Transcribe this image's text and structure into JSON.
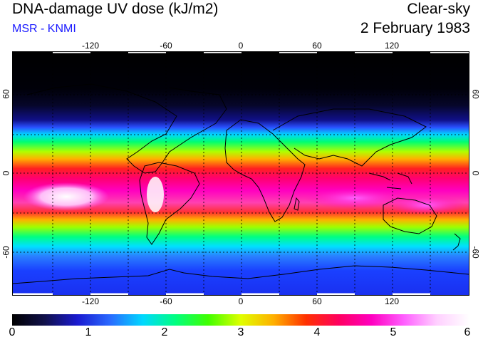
{
  "header": {
    "title": "DNA-damage UV dose (kJ/m2)",
    "subtitle": "MSR - KNMI",
    "mode": "Clear-sky",
    "date": "2 February 1983"
  },
  "map": {
    "lon_ticks": [
      "-120",
      "-60",
      "0",
      "60",
      "120"
    ],
    "lat_ticks_left": [
      "60",
      "0",
      "-60"
    ],
    "lat_ticks_right": [
      "60",
      "0",
      "-60"
    ]
  },
  "colorbar": {
    "labels": [
      "0",
      "1",
      "2",
      "3",
      "4",
      "5",
      "6"
    ],
    "stops": [
      "#000000",
      "#10104a",
      "#1a1ad0",
      "#2a6aff",
      "#00d8ff",
      "#00ff80",
      "#40ff00",
      "#e0ff00",
      "#ffb000",
      "#ff3000",
      "#ff0060",
      "#ff00c0",
      "#ff60ff",
      "#ffd0ff",
      "#ffffff"
    ]
  }
}
